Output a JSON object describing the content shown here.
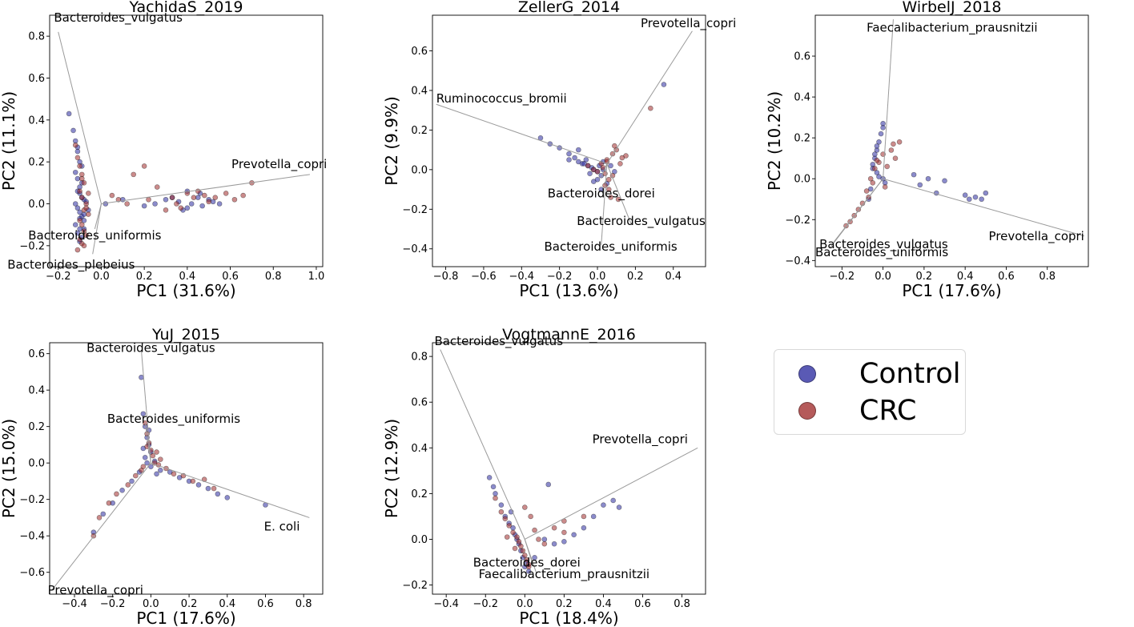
{
  "colors": {
    "Control": "#2b2ba0",
    "CRC": "#a02b2b",
    "loading": "#9a9a9a"
  },
  "legend": {
    "items": [
      {
        "label": "Control",
        "color": "#5a5ab5"
      },
      {
        "label": "CRC",
        "color": "#b55a5a"
      }
    ]
  },
  "chart_data": [
    {
      "type": "scatter",
      "title": "YachidaS_2019",
      "xlabel": "PC1 (31.6%)",
      "ylabel": "PC2 (11.1%)",
      "xlim": [
        -0.24,
        1.03
      ],
      "ylim": [
        -0.3,
        0.9
      ],
      "xticks": [
        -0.2,
        0.0,
        0.2,
        0.4,
        0.6,
        0.8,
        1.0
      ],
      "yticks": [
        -0.2,
        0.0,
        0.2,
        0.4,
        0.6,
        0.8
      ],
      "origin": [
        0.0,
        0.0
      ],
      "loadings": [
        {
          "label": "Bacteroides_vulgatus",
          "x": -0.2,
          "y": 0.82,
          "align": "start",
          "dx": -0.02,
          "dy": 0.05
        },
        {
          "label": "Prevotella_copri",
          "x": 0.97,
          "y": 0.14,
          "align": "end",
          "dx": 0.08,
          "dy": 0.03
        },
        {
          "label": "Bacteroides_uniformis",
          "x": -0.03,
          "y": -0.12,
          "align": "middle",
          "dx": 0.0,
          "dy": -0.05
        },
        {
          "label": "Bacteroides_plebeius",
          "x": -0.04,
          "y": -0.24,
          "align": "middle",
          "dx": -0.1,
          "dy": -0.07
        }
      ],
      "control": {
        "x": [
          -0.15,
          -0.13,
          -0.12,
          -0.11,
          -0.1,
          -0.12,
          -0.11,
          -0.09,
          -0.1,
          -0.08,
          -0.12,
          -0.11,
          -0.1,
          -0.09,
          -0.08,
          -0.12,
          -0.1,
          -0.11,
          -0.09,
          -0.08,
          -0.07,
          -0.1,
          -0.09,
          -0.06,
          -0.11,
          -0.1,
          -0.08,
          -0.09,
          -0.1,
          -0.11,
          0.02,
          0.1,
          0.2,
          0.25,
          0.3,
          0.33,
          0.36,
          0.4,
          0.42,
          0.45,
          0.47,
          0.5,
          0.52,
          0.55,
          0.4,
          0.38,
          0.46
        ],
        "y": [
          0.43,
          0.35,
          0.3,
          0.27,
          0.2,
          0.15,
          0.12,
          0.1,
          0.05,
          0.02,
          0.0,
          -0.02,
          -0.04,
          -0.06,
          -0.08,
          -0.1,
          -0.12,
          -0.14,
          -0.16,
          -0.05,
          0.01,
          0.08,
          0.18,
          -0.03,
          0.25,
          -0.18,
          -0.12,
          0.03,
          -0.07,
          0.06,
          0.0,
          0.02,
          -0.01,
          0.0,
          0.02,
          0.03,
          0.01,
          -0.02,
          0.0,
          0.03,
          -0.01,
          0.02,
          0.01,
          0.0,
          0.06,
          -0.03,
          0.05
        ]
      },
      "crc": {
        "x": [
          -0.12,
          -0.11,
          -0.1,
          -0.09,
          -0.08,
          -0.1,
          -0.09,
          -0.07,
          -0.08,
          -0.06,
          -0.1,
          -0.09,
          -0.08,
          -0.07,
          -0.1,
          -0.09,
          -0.08,
          -0.11,
          -0.09,
          -0.07,
          -0.06,
          0.05,
          0.08,
          0.12,
          0.15,
          0.2,
          0.22,
          0.26,
          0.3,
          0.35,
          0.4,
          0.43,
          0.48,
          0.5,
          0.53,
          0.58,
          0.62,
          0.66,
          0.7,
          0.45,
          0.37,
          0.33
        ],
        "y": [
          0.28,
          0.22,
          0.18,
          0.14,
          0.1,
          0.06,
          0.03,
          0.0,
          -0.03,
          -0.05,
          -0.08,
          -0.1,
          -0.13,
          -0.15,
          -0.17,
          -0.19,
          -0.2,
          -0.22,
          0.12,
          -0.02,
          0.05,
          0.04,
          0.02,
          0.0,
          0.14,
          0.18,
          0.02,
          0.08,
          -0.03,
          0.0,
          0.05,
          0.03,
          0.04,
          0.01,
          0.03,
          0.05,
          0.02,
          0.04,
          0.1,
          0.06,
          -0.02,
          0.03
        ]
      }
    },
    {
      "type": "scatter",
      "title": "ZellerG_2014",
      "xlabel": "PC1 (13.6%)",
      "ylabel": "PC2 (9.9%)",
      "xlim": [
        -0.87,
        0.57
      ],
      "ylim": [
        -0.49,
        0.78
      ],
      "xticks": [
        -0.8,
        -0.6,
        -0.4,
        -0.2,
        0.0,
        0.2,
        0.4
      ],
      "yticks": [
        -0.4,
        -0.2,
        0.0,
        0.2,
        0.4,
        0.6
      ],
      "origin": [
        0.05,
        0.03
      ],
      "loadings": [
        {
          "label": "Prevotella_copri",
          "x": 0.5,
          "y": 0.7,
          "align": "middle",
          "dx": -0.02,
          "dy": 0.02
        },
        {
          "label": "Ruminococcus_bromii",
          "x": -0.85,
          "y": 0.33,
          "align": "start",
          "dx": 0.0,
          "dy": 0.01
        },
        {
          "label": "Bacteroides_dorei",
          "x": 0.02,
          "y": -0.04,
          "align": "middle",
          "dx": 0.0,
          "dy": -0.1
        },
        {
          "label": "Bacteroides_vulgatus",
          "x": 0.18,
          "y": -0.28,
          "align": "middle",
          "dx": 0.05,
          "dy": 0.0
        },
        {
          "label": "Bacteroides_uniformis",
          "x": 0.02,
          "y": -0.38,
          "align": "middle",
          "dx": 0.05,
          "dy": -0.03
        }
      ],
      "control": {
        "x": [
          -0.3,
          -0.25,
          -0.2,
          -0.15,
          -0.12,
          -0.1,
          -0.08,
          -0.05,
          -0.03,
          -0.02,
          0.0,
          0.01,
          0.02,
          0.03,
          -0.06,
          -0.04,
          0.0,
          0.05,
          -0.1,
          -0.15,
          0.03,
          0.02,
          0.35,
          0.07,
          0.09,
          -0.07,
          -0.02
        ],
        "y": [
          0.16,
          0.13,
          0.11,
          0.08,
          0.06,
          0.04,
          0.03,
          0.02,
          0.01,
          0.0,
          -0.01,
          0.02,
          -0.03,
          0.0,
          0.05,
          -0.02,
          -0.05,
          -0.07,
          0.1,
          0.05,
          0.04,
          -0.1,
          0.43,
          0.02,
          -0.01,
          0.03,
          -0.06
        ]
      },
      "crc": {
        "x": [
          -0.05,
          -0.02,
          0.0,
          0.02,
          0.04,
          0.05,
          0.06,
          0.08,
          0.1,
          0.12,
          0.15,
          0.06,
          0.03,
          0.07,
          0.11,
          0.28,
          0.09,
          0.13,
          0.04,
          0.05,
          0.08
        ],
        "y": [
          0.02,
          0.0,
          -0.01,
          0.03,
          -0.02,
          0.05,
          -0.05,
          0.08,
          0.1,
          0.03,
          0.07,
          -0.1,
          0.01,
          -0.14,
          -0.15,
          0.31,
          0.12,
          0.06,
          -0.08,
          0.04,
          -0.03
        ]
      }
    },
    {
      "type": "scatter",
      "title": "WirbelJ_2018",
      "xlabel": "PC1 (17.6%)",
      "ylabel": "PC2 (10.2%)",
      "xlim": [
        -0.33,
        1.0
      ],
      "ylim": [
        -0.43,
        0.8
      ],
      "xticks": [
        -0.2,
        0.0,
        0.2,
        0.4,
        0.6,
        0.8
      ],
      "yticks": [
        -0.4,
        -0.2,
        0.0,
        0.2,
        0.4,
        0.6
      ],
      "origin": [
        0.0,
        0.0
      ],
      "loadings": [
        {
          "label": "Faecalibacterium_prausnitzii",
          "x": 0.05,
          "y": 0.78,
          "align": "start",
          "dx": -0.13,
          "dy": -0.06
        },
        {
          "label": "Prevotella_copri",
          "x": 0.98,
          "y": -0.28,
          "align": "end",
          "dx": 0.0,
          "dy": -0.02
        },
        {
          "label": "Bacteroides_vulgatus",
          "x": -0.24,
          "y": -0.31,
          "align": "start",
          "dx": -0.07,
          "dy": -0.03
        },
        {
          "label": "Bacteroides_uniformis",
          "x": -0.26,
          "y": -0.34,
          "align": "start",
          "dx": -0.07,
          "dy": -0.04
        }
      ],
      "control": {
        "x": [
          0.0,
          -0.01,
          -0.02,
          -0.03,
          -0.04,
          -0.05,
          -0.03,
          -0.02,
          0.0,
          0.01,
          -0.06,
          -0.07,
          -0.05,
          -0.04,
          0.15,
          0.18,
          0.22,
          0.26,
          0.3,
          0.4,
          0.42,
          0.45,
          0.48,
          0.5,
          0.0,
          -0.03
        ],
        "y": [
          0.27,
          0.22,
          0.18,
          0.14,
          0.1,
          0.07,
          0.03,
          0.01,
          0.0,
          -0.02,
          -0.05,
          -0.1,
          0.05,
          0.12,
          0.02,
          -0.03,
          0.0,
          -0.07,
          -0.01,
          -0.08,
          -0.1,
          -0.09,
          -0.1,
          -0.07,
          0.25,
          0.16
        ]
      },
      "crc": {
        "x": [
          0.0,
          -0.02,
          -0.04,
          -0.06,
          -0.08,
          -0.1,
          -0.12,
          -0.14,
          -0.16,
          -0.18,
          0.05,
          0.08,
          0.06,
          0.04,
          -0.03,
          0.02,
          0.01,
          -0.05,
          -0.07
        ],
        "y": [
          0.12,
          0.08,
          0.05,
          0.0,
          -0.06,
          -0.12,
          -0.15,
          -0.18,
          -0.21,
          -0.23,
          0.17,
          0.18,
          0.1,
          0.14,
          0.09,
          0.06,
          -0.04,
          -0.02,
          -0.09
        ]
      }
    },
    {
      "type": "scatter",
      "title": "YuJ_2015",
      "xlabel": "PC1 (17.6%)",
      "ylabel": "PC2 (15.0%)",
      "xlim": [
        -0.53,
        0.9
      ],
      "ylim": [
        -0.72,
        0.66
      ],
      "xticks": [
        -0.4,
        -0.2,
        0.0,
        0.2,
        0.4,
        0.6,
        0.8
      ],
      "yticks": [
        -0.6,
        -0.4,
        -0.2,
        0.0,
        0.2,
        0.4,
        0.6
      ],
      "origin": [
        0.0,
        0.0
      ],
      "loadings": [
        {
          "label": "Bacteroides_vulgatus",
          "x": -0.05,
          "y": 0.62,
          "align": "middle",
          "dx": 0.05,
          "dy": -0.01
        },
        {
          "label": "Bacteroides_uniformis",
          "x": -0.03,
          "y": 0.22,
          "align": "middle",
          "dx": 0.15,
          "dy": 0.0
        },
        {
          "label": "E. coli",
          "x": 0.83,
          "y": -0.3,
          "align": "end",
          "dx": -0.05,
          "dy": -0.07
        },
        {
          "label": "Prevotella_copri",
          "x": -0.52,
          "y": -0.7,
          "align": "start",
          "dx": -0.02,
          "dy": -0.02
        }
      ],
      "control": {
        "x": [
          -0.05,
          -0.04,
          -0.03,
          -0.02,
          -0.01,
          0.0,
          -0.03,
          -0.02,
          0.0,
          0.02,
          0.05,
          0.1,
          0.15,
          0.2,
          0.25,
          0.3,
          0.35,
          0.4,
          0.6,
          -0.06,
          -0.1,
          -0.15,
          -0.2,
          -0.25,
          -0.3,
          -0.01,
          0.03,
          -0.04
        ],
        "y": [
          0.47,
          0.27,
          0.2,
          0.14,
          0.1,
          0.06,
          0.03,
          0.0,
          -0.02,
          0.01,
          -0.04,
          -0.05,
          -0.08,
          -0.1,
          -0.12,
          -0.14,
          -0.17,
          -0.19,
          -0.23,
          -0.05,
          -0.1,
          -0.15,
          -0.22,
          -0.28,
          -0.38,
          0.18,
          -0.06,
          0.08
        ]
      },
      "crc": {
        "x": [
          -0.03,
          -0.02,
          -0.01,
          0.0,
          0.01,
          0.02,
          -0.04,
          -0.05,
          -0.08,
          -0.12,
          -0.18,
          -0.22,
          -0.27,
          -0.3,
          0.05,
          0.08,
          0.12,
          0.17,
          0.22,
          0.28,
          0.33,
          0.03,
          0.04,
          -0.02
        ],
        "y": [
          0.22,
          0.16,
          0.11,
          0.07,
          0.04,
          0.0,
          -0.02,
          -0.04,
          -0.07,
          -0.12,
          -0.17,
          -0.22,
          -0.3,
          -0.4,
          0.02,
          -0.03,
          -0.06,
          -0.07,
          -0.1,
          -0.09,
          -0.14,
          0.06,
          -0.01,
          0.09
        ]
      }
    },
    {
      "type": "scatter",
      "title": "VogtmannE_2016",
      "xlabel": "PC1 (18.4%)",
      "ylabel": "PC2 (12.9%)",
      "xlim": [
        -0.47,
        0.92
      ],
      "ylim": [
        -0.24,
        0.86
      ],
      "xticks": [
        -0.4,
        -0.2,
        0.0,
        0.2,
        0.4,
        0.6,
        0.8
      ],
      "yticks": [
        -0.2,
        0.0,
        0.2,
        0.4,
        0.6,
        0.8
      ],
      "origin": [
        0.0,
        0.0
      ],
      "loadings": [
        {
          "label": "Bacteroides_vulgatus",
          "x": -0.43,
          "y": 0.83,
          "align": "start",
          "dx": -0.03,
          "dy": 0.02
        },
        {
          "label": "Prevotella_copri",
          "x": 0.88,
          "y": 0.4,
          "align": "end",
          "dx": -0.05,
          "dy": 0.02
        },
        {
          "label": "Bacteroides_dorei",
          "x": 0.04,
          "y": -0.11,
          "align": "middle",
          "dx": -0.03,
          "dy": -0.01
        },
        {
          "label": "Faecalibacterium_prausnitzii",
          "x": 0.06,
          "y": -0.15,
          "align": "middle",
          "dx": 0.14,
          "dy": -0.02
        }
      ],
      "control": {
        "x": [
          -0.18,
          -0.15,
          -0.12,
          -0.1,
          -0.08,
          -0.06,
          -0.05,
          -0.04,
          -0.03,
          -0.02,
          -0.01,
          0.0,
          0.01,
          0.02,
          0.12,
          0.1,
          0.15,
          0.25,
          0.3,
          0.35,
          0.4,
          0.45,
          0.48,
          0.2,
          -0.16,
          0.05,
          -0.07
        ],
        "y": [
          0.27,
          0.2,
          0.15,
          0.1,
          0.07,
          0.05,
          0.02,
          0.0,
          -0.02,
          -0.05,
          -0.08,
          -0.12,
          -0.1,
          -0.14,
          0.24,
          0.0,
          -0.02,
          0.02,
          0.05,
          0.1,
          0.15,
          0.17,
          0.14,
          -0.01,
          0.23,
          -0.08,
          0.12
        ]
      },
      "crc": {
        "x": [
          -0.15,
          -0.12,
          -0.1,
          -0.08,
          -0.06,
          -0.04,
          -0.03,
          -0.02,
          -0.01,
          0.0,
          0.01,
          0.02,
          0.0,
          0.03,
          0.05,
          0.07,
          0.1,
          0.15,
          0.2,
          0.2,
          0.3,
          0.02,
          -0.05,
          -0.09
        ],
        "y": [
          0.18,
          0.12,
          0.09,
          0.06,
          0.03,
          0.01,
          -0.01,
          -0.03,
          -0.05,
          -0.07,
          -0.09,
          -0.11,
          0.14,
          0.1,
          0.04,
          0.0,
          -0.02,
          0.05,
          0.08,
          0.03,
          0.1,
          -0.12,
          -0.04,
          0.01
        ]
      }
    }
  ]
}
